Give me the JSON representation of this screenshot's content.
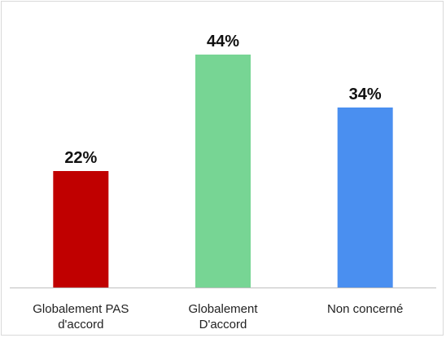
{
  "chart_data": {
    "type": "bar",
    "title": "",
    "xlabel": "",
    "ylabel": "",
    "ylim": [
      0,
      50
    ],
    "grid": false,
    "legend": "none",
    "unit": "%",
    "categories": [
      [
        "Globalement PAS",
        "d'accord"
      ],
      [
        "Globalement",
        "D'accord"
      ],
      [
        "Non concerné"
      ]
    ],
    "values": [
      22,
      44,
      34
    ],
    "value_labels": [
      "22%",
      "44%",
      "34%"
    ],
    "colors": [
      "#c00000",
      "#77d594",
      "#4a8ff0"
    ]
  }
}
